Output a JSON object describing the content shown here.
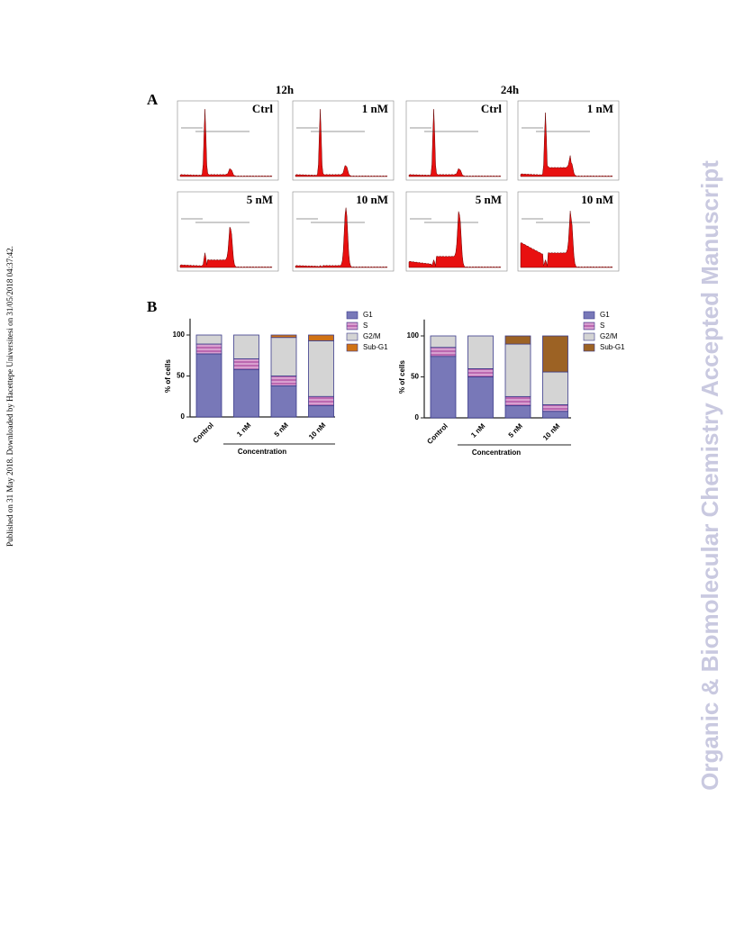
{
  "side_note": "Published on 31 May 2018. Downloaded by Hacettepe Universitesi on 31/05/2018 04:37:42.",
  "watermark": "Organic & Biomolecular Chemistry Accepted Manuscript",
  "panel_a": {
    "label": "A",
    "columns": [
      "12h",
      "24h"
    ],
    "histograms": [
      "Ctrl",
      "1 nM",
      "Ctrl",
      "1 nM",
      "5 nM",
      "10 nM",
      "5 nM",
      "10 nM"
    ]
  },
  "panel_b": {
    "label": "B"
  },
  "chart_data": [
    {
      "type": "bar",
      "stacked": true,
      "categories": [
        "Control",
        "1 nM",
        "5 nM",
        "10 nM"
      ],
      "series": [
        {
          "name": "G1",
          "color": "#7878b8",
          "values": [
            77,
            58,
            38,
            14
          ]
        },
        {
          "name": "S",
          "color": "#d8a0d0",
          "values": [
            12,
            13,
            12,
            11
          ]
        },
        {
          "name": "G2/M",
          "color": "#d4d4d4",
          "values": [
            11,
            29,
            47,
            68
          ]
        },
        {
          "name": "Sub-G1",
          "color": "#d07214",
          "values": [
            0,
            0,
            3,
            7
          ]
        }
      ],
      "ylim": [
        0,
        120
      ],
      "yticks": [
        0,
        50,
        100
      ],
      "y_label": "% of cells",
      "x_label": "Concentration"
    },
    {
      "type": "bar",
      "stacked": true,
      "categories": [
        "Control",
        "1 nM",
        "5 nM",
        "10 nM"
      ],
      "series": [
        {
          "name": "G1",
          "color": "#7878b8",
          "values": [
            75,
            50,
            15,
            8
          ]
        },
        {
          "name": "S",
          "color": "#d8a0d0",
          "values": [
            11,
            10,
            11,
            8
          ]
        },
        {
          "name": "G2/M",
          "color": "#d4d4d4",
          "values": [
            14,
            40,
            64,
            40
          ]
        },
        {
          "name": "Sub-G1",
          "color": "#9c6224",
          "values": [
            0,
            0,
            10,
            44
          ]
        }
      ],
      "ylim": [
        0,
        120
      ],
      "yticks": [
        0,
        50,
        100
      ],
      "y_label": "% of cells",
      "x_label": "Concentration"
    }
  ]
}
